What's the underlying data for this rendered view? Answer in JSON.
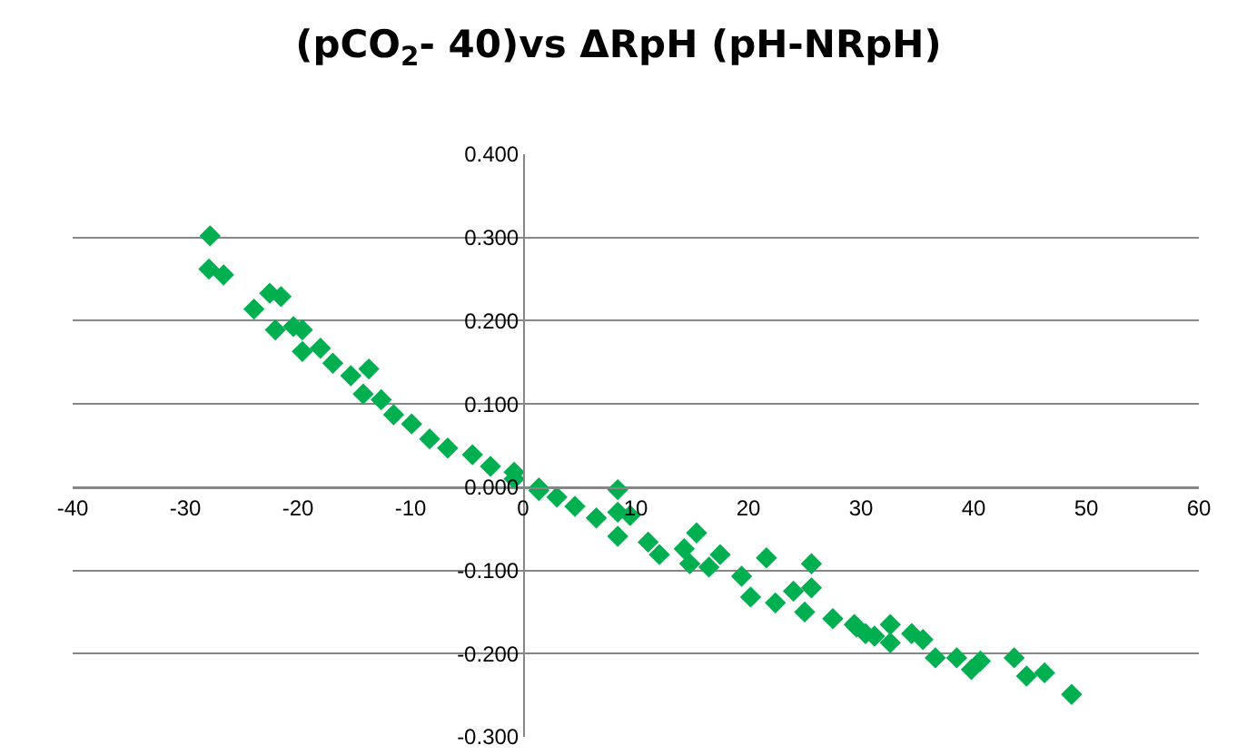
{
  "chart_data": {
    "type": "scatter",
    "title": "(pCO$_{2}$- 40)vs ΔRpH (pH-NRpH)",
    "x": [
      -27.8,
      -27.9,
      -26.6,
      -23.9,
      -22.5,
      -21.5,
      -22.0,
      -20.4,
      -19.6,
      -19.6,
      -18.0,
      -16.9,
      -15.3,
      -13.7,
      -14.2,
      -12.6,
      -11.5,
      -9.9,
      -8.3,
      -6.7,
      -4.5,
      -2.9,
      -0.8,
      1.4,
      -0.8,
      1.4,
      3.0,
      4.6,
      6.5,
      8.4,
      8.4,
      9.5,
      8.4,
      11.1,
      12.1,
      14.3,
      15.4,
      14.8,
      16.5,
      17.5,
      19.4,
      20.2,
      21.6,
      22.4,
      24.0,
      25.6,
      25.0,
      27.5,
      29.4,
      30.4,
      25.6,
      29.6,
      31.2,
      32.6,
      32.6,
      34.5,
      35.5,
      36.6,
      38.5,
      39.8,
      40.6,
      43.6,
      44.7,
      46.3,
      48.7
    ],
    "series": [
      {
        "color": "#00b050",
        "values": [
          0.302,
          0.262,
          0.255,
          0.214,
          0.233,
          0.229,
          0.189,
          0.193,
          0.189,
          0.163,
          0.167,
          0.149,
          0.134,
          0.142,
          0.112,
          0.105,
          0.087,
          0.076,
          0.058,
          0.047,
          0.039,
          0.025,
          0.018,
          -0.004,
          0.01,
          -0.001,
          -0.012,
          -0.023,
          -0.037,
          -0.003,
          -0.03,
          -0.034,
          -0.059,
          -0.066,
          -0.081,
          -0.074,
          -0.055,
          -0.092,
          -0.096,
          -0.081,
          -0.107,
          -0.132,
          -0.085,
          -0.139,
          -0.125,
          -0.092,
          -0.15,
          -0.158,
          -0.165,
          -0.176,
          -0.121,
          -0.168,
          -0.179,
          -0.165,
          -0.187,
          -0.176,
          -0.183,
          -0.205,
          -0.205,
          -0.219,
          -0.209,
          -0.205,
          -0.227,
          -0.223,
          -0.249
        ]
      }
    ],
    "xlim": [
      -40,
      60
    ],
    "xticks": [
      -40,
      -30,
      -20,
      -10,
      0,
      10,
      20,
      30,
      40,
      50,
      60
    ],
    "ylim": [
      -0.3,
      0.4
    ],
    "yticks": [
      {
        "value": -0.3,
        "label": "-0.300"
      },
      {
        "value": -0.2,
        "label": "-0.200"
      },
      {
        "value": -0.1,
        "label": "-0.100"
      },
      {
        "value": 0,
        "label": "0.000"
      },
      {
        "value": 0.1,
        "label": "0.100"
      },
      {
        "value": 0.2,
        "label": "0.200"
      },
      {
        "value": 0.3,
        "label": "0.300"
      },
      {
        "value": 0.4,
        "label": "0.400"
      }
    ],
    "grid": "y",
    "marker": "diamond"
  }
}
